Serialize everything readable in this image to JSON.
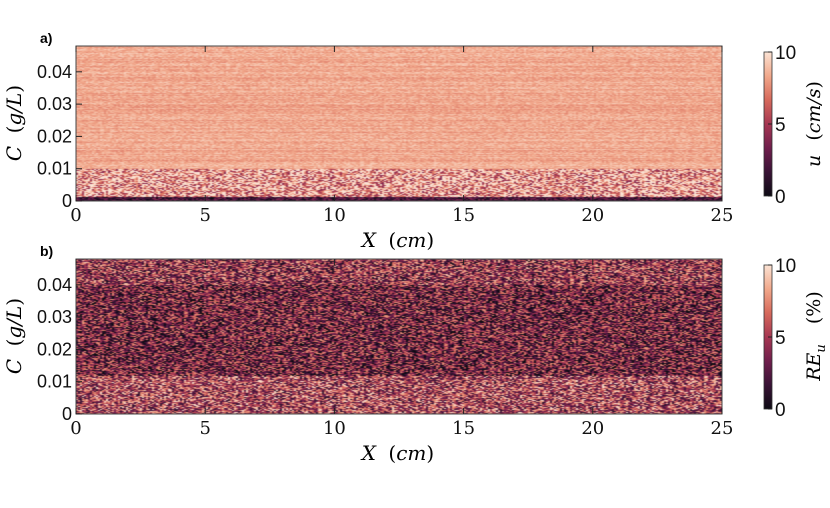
{
  "chart_data": [
    {
      "panel_label": "a)",
      "type": "heatmap",
      "x_label": "X (cm)",
      "y_label": "C (g/L)",
      "x_ticks": [
        0,
        5,
        10,
        15,
        20,
        25
      ],
      "y_ticks": [
        0,
        0.01,
        0.02,
        0.03,
        0.04
      ],
      "y_tick_labels": [
        "0",
        "0.01",
        "0.02",
        "0.03",
        "0.04"
      ],
      "xlim": [
        0,
        25
      ],
      "ylim": [
        0,
        0.048
      ],
      "colorbar": {
        "label": "u (cm/s)",
        "ticks": [
          0,
          5,
          10
        ],
        "range": [
          0,
          10
        ]
      },
      "colormap": [
        "#0d0b14",
        "#3a1336",
        "#6e1e4c",
        "#a63752",
        "#d76a5c",
        "#f1a78a",
        "#fbe3d4"
      ],
      "field_description_values": {
        "upper_region_typical_value": 8.4,
        "lower_region_below_C": 0.01,
        "lower_region_typical_value": 6.5
      }
    },
    {
      "panel_label": "b)",
      "type": "heatmap",
      "x_label": "X (cm)",
      "y_label": "C (g/L)",
      "x_ticks": [
        0,
        5,
        10,
        15,
        20,
        25
      ],
      "y_ticks": [
        0,
        0.01,
        0.02,
        0.03,
        0.04
      ],
      "y_tick_labels": [
        "0",
        "0.01",
        "0.02",
        "0.03",
        "0.04"
      ],
      "xlim": [
        0,
        25
      ],
      "ylim": [
        0,
        0.048
      ],
      "colorbar": {
        "label": "RE_u (%)",
        "ticks": [
          0,
          5,
          10
        ],
        "range": [
          0,
          10
        ]
      },
      "colormap": [
        "#0d0b14",
        "#3a1336",
        "#6e1e4c",
        "#a63752",
        "#d76a5c",
        "#f1a78a",
        "#fbe3d4"
      ],
      "field_description_values": {
        "upper_region_typical_value": 3.5,
        "lower_region_typical_value": 5.5
      }
    }
  ]
}
